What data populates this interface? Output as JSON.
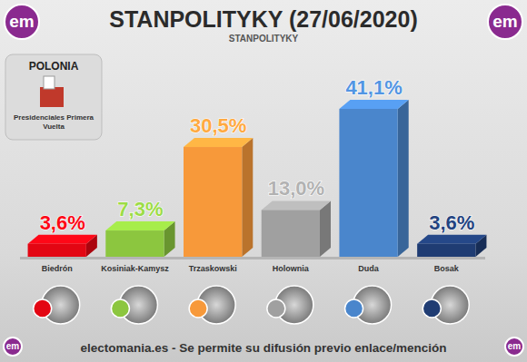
{
  "chart_data": {
    "type": "bar",
    "title": "STANPOLITYKY (27/06/2020)",
    "subtitle": "STANPOLITYKY",
    "country": "POLONIA",
    "election": "Presidenciales Primera Vuelta",
    "source": "electomania.es - Se permite su difusión previo enlace/mención",
    "logo": "em",
    "categories": [
      "Biedrón",
      "Kosiniak-Kamysz",
      "Trzaskowski",
      "Holownia",
      "Duda",
      "Bosak"
    ],
    "values": [
      3.6,
      7.3,
      30.5,
      13.0,
      41.1,
      3.6
    ],
    "value_labels": [
      "3,6%",
      "7,3%",
      "30,5%",
      "13,0%",
      "41,1%",
      "3,6%"
    ],
    "colors": [
      "#e30613",
      "#8cc63f",
      "#f7993a",
      "#a0a0a0",
      "#4a86cc",
      "#1f3c73"
    ],
    "data_labels": true,
    "tick_labels": "x",
    "grid": false
  }
}
